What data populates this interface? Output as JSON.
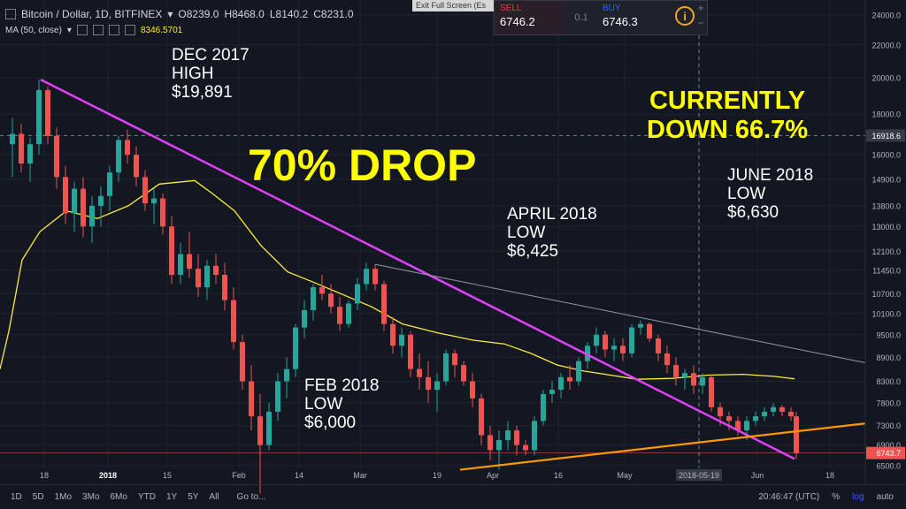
{
  "header": {
    "symbol": "Bitcoin / Dollar, 1D, BITFINEX",
    "open": "O8239.0",
    "high": "H8468.0",
    "low": "L8140.2",
    "close": "C8231.0",
    "ma_label": "MA (50, close)",
    "ma_value": "8346.5701"
  },
  "exit_fullscreen": "Exit Full Screen (Es",
  "trade": {
    "sell_label": "SELL",
    "sell_value": "6746.2",
    "spread": "0.1",
    "buy_label": "BUY",
    "buy_value": "6746.3",
    "zoom_in": "+",
    "zoom_out": "−"
  },
  "annotations": {
    "dec_high": "DEC 2017\nHIGH\n$19,891",
    "drop": "70% DROP",
    "currently": "CURRENTLY\nDOWN 66.7%",
    "june_low": "JUNE 2018\nLOW\n$6,630",
    "april_low": "APRIL 2018\nLOW\n$6,425",
    "feb_low": "FEB 2018\nLOW\n$6,000"
  },
  "bottom_bar": {
    "timeframes": [
      "1D",
      "5D",
      "1Mo",
      "3Mo",
      "6Mo",
      "YTD",
      "1Y",
      "5Y",
      "All"
    ],
    "goto": "Go to...",
    "clock": "20:46:47 (UTC)",
    "pct": "%",
    "log": "log",
    "auto": "auto"
  },
  "colors": {
    "bg": "#131722",
    "up": "#26a69a",
    "down": "#ef5350",
    "ma": "#ffeb3b",
    "downtrend": "#e040fb",
    "support": "#ff9800",
    "resistance": "#9598a1",
    "annotation_yellow": "#ffff00"
  },
  "chart_data": {
    "type": "candlestick",
    "x_axis": {
      "ticks": [
        "18",
        "2018",
        "15",
        "Feb",
        "14",
        "Mar",
        "19",
        "Apr",
        "16",
        "May",
        "2018-05-19",
        "Jun",
        "18"
      ]
    },
    "y_axis": {
      "ticks": [
        6500,
        6900,
        7300,
        7800,
        8300,
        8900,
        9500,
        10100,
        10700,
        11450,
        12100,
        13000,
        13800,
        14900,
        16000,
        18000,
        20000,
        22000,
        24000
      ],
      "scale": "log",
      "ylim": [
        6350,
        24500
      ],
      "labels": [
        "6500.0",
        "6900.0",
        "7300.0",
        "7800.0",
        "8300.0",
        "8900.0",
        "9500.0",
        "10100.0",
        "10700.0",
        "11450.0",
        "12100.0",
        "13000.0",
        "13800.0",
        "14900.0",
        "16000.0",
        "18000.0",
        "20000.0",
        "22000.0",
        "24000.0"
      ],
      "crosshair_label": "16918.6",
      "last_price_label": "6743.7"
    },
    "series": [
      {
        "name": "MA (50, close)",
        "type": "line",
        "points": [
          [
            0,
            8600
          ],
          [
            10,
            9600
          ],
          [
            25,
            11800
          ],
          [
            45,
            12800
          ],
          [
            75,
            13600
          ],
          [
            110,
            13300
          ],
          [
            145,
            13800
          ],
          [
            180,
            14700
          ],
          [
            220,
            14850
          ],
          [
            240,
            14300
          ],
          [
            265,
            13600
          ],
          [
            295,
            12300
          ],
          [
            325,
            11400
          ],
          [
            355,
            11050
          ],
          [
            385,
            10700
          ],
          [
            420,
            10300
          ],
          [
            455,
            9800
          ],
          [
            495,
            9550
          ],
          [
            535,
            9350
          ],
          [
            570,
            9250
          ],
          [
            600,
            9000
          ],
          [
            630,
            8700
          ],
          [
            660,
            8550
          ],
          [
            690,
            8450
          ],
          [
            720,
            8350
          ],
          [
            760,
            8370
          ],
          [
            800,
            8450
          ],
          [
            840,
            8470
          ],
          [
            875,
            8420
          ],
          [
            898,
            8360
          ]
        ]
      }
    ],
    "candles": [
      [
        14,
        16500,
        17800,
        15000,
        17000
      ],
      [
        24,
        17000,
        17500,
        15200,
        15600
      ],
      [
        34,
        15600,
        16800,
        14800,
        16500
      ],
      [
        44,
        16500,
        19891,
        16000,
        19300
      ],
      [
        54,
        19300,
        19500,
        16500,
        16900
      ],
      [
        64,
        16900,
        17300,
        14500,
        15000
      ],
      [
        74,
        15000,
        15500,
        13100,
        13500
      ],
      [
        84,
        13500,
        14800,
        12800,
        14500
      ],
      [
        94,
        14500,
        15000,
        12600,
        13000
      ],
      [
        104,
        13000,
        14200,
        12400,
        13800
      ],
      [
        114,
        13800,
        14600,
        13000,
        14200
      ],
      [
        124,
        14200,
        15500,
        13600,
        15200
      ],
      [
        134,
        15200,
        16900,
        14800,
        16700
      ],
      [
        144,
        16700,
        17200,
        15600,
        16000
      ],
      [
        154,
        16000,
        16400,
        14600,
        15000
      ],
      [
        164,
        15000,
        15300,
        13600,
        13900
      ],
      [
        174,
        13900,
        14500,
        13100,
        14100
      ],
      [
        184,
        14100,
        14300,
        12700,
        13000
      ],
      [
        194,
        13000,
        13400,
        11000,
        11300
      ],
      [
        204,
        11300,
        12400,
        11000,
        12000
      ],
      [
        214,
        12000,
        12800,
        11200,
        11500
      ],
      [
        224,
        11500,
        12000,
        10600,
        10900
      ],
      [
        234,
        10900,
        11800,
        10500,
        11600
      ],
      [
        244,
        11600,
        12000,
        11000,
        11300
      ],
      [
        254,
        11300,
        11700,
        10200,
        10500
      ],
      [
        264,
        10500,
        10900,
        9100,
        9300
      ],
      [
        274,
        9300,
        9500,
        8100,
        8300
      ],
      [
        284,
        8300,
        8700,
        7200,
        7500
      ],
      [
        294,
        7500,
        8000,
        6000,
        6900
      ],
      [
        304,
        6900,
        7800,
        6800,
        7600
      ],
      [
        314,
        7600,
        8500,
        7400,
        8300
      ],
      [
        324,
        8300,
        8900,
        7900,
        8600
      ],
      [
        334,
        8600,
        9800,
        8400,
        9700
      ],
      [
        344,
        9700,
        10500,
        9400,
        10200
      ],
      [
        354,
        10200,
        11000,
        9900,
        10900
      ],
      [
        364,
        10900,
        11300,
        10500,
        10700
      ],
      [
        374,
        10700,
        11000,
        10100,
        10300
      ],
      [
        384,
        10300,
        10600,
        9600,
        9800
      ],
      [
        394,
        9800,
        10500,
        9700,
        10400
      ],
      [
        404,
        10400,
        11200,
        10200,
        11000
      ],
      [
        414,
        11000,
        11700,
        10800,
        11500
      ],
      [
        424,
        11500,
        11650,
        10800,
        11000
      ],
      [
        434,
        11000,
        11100,
        9600,
        9800
      ],
      [
        444,
        9800,
        10000,
        9000,
        9200
      ],
      [
        454,
        9200,
        9700,
        8900,
        9500
      ],
      [
        464,
        9500,
        9600,
        8400,
        8600
      ],
      [
        474,
        8600,
        9000,
        8100,
        8400
      ],
      [
        484,
        8400,
        8800,
        7800,
        8100
      ],
      [
        494,
        8100,
        8500,
        7600,
        8300
      ],
      [
        504,
        8300,
        9100,
        8200,
        9000
      ],
      [
        514,
        9000,
        9100,
        8400,
        8700
      ],
      [
        524,
        8700,
        8800,
        8200,
        8300
      ],
      [
        534,
        8300,
        8500,
        7700,
        7900
      ],
      [
        544,
        7900,
        8000,
        6900,
        7100
      ],
      [
        554,
        7100,
        7300,
        6600,
        6800
      ],
      [
        564,
        6800,
        7200,
        6425,
        7000
      ],
      [
        574,
        7000,
        7400,
        6800,
        7200
      ],
      [
        584,
        7200,
        7300,
        6700,
        6900
      ],
      [
        594,
        6900,
        7000,
        6700,
        6800
      ],
      [
        604,
        6800,
        7500,
        6700,
        7400
      ],
      [
        614,
        7400,
        8100,
        7300,
        8000
      ],
      [
        624,
        8000,
        8300,
        7800,
        8100
      ],
      [
        634,
        8100,
        8500,
        7900,
        8400
      ],
      [
        644,
        8400,
        8700,
        8100,
        8300
      ],
      [
        654,
        8300,
        8900,
        8200,
        8800
      ],
      [
        664,
        8800,
        9300,
        8600,
        9200
      ],
      [
        674,
        9200,
        9700,
        9000,
        9500
      ],
      [
        684,
        9500,
        9600,
        8900,
        9100
      ],
      [
        694,
        9100,
        9400,
        8800,
        9200
      ],
      [
        704,
        9200,
        9400,
        8800,
        9000
      ],
      [
        714,
        9000,
        9800,
        8900,
        9700
      ],
      [
        724,
        9700,
        9900,
        9500,
        9800
      ],
      [
        734,
        9800,
        9850,
        9300,
        9400
      ],
      [
        744,
        9400,
        9500,
        8800,
        9000
      ],
      [
        754,
        9000,
        9200,
        8500,
        8700
      ],
      [
        764,
        8700,
        8900,
        8200,
        8400
      ],
      [
        774,
        8400,
        8600,
        8100,
        8500
      ],
      [
        784,
        8500,
        8700,
        8000,
        8200
      ],
      [
        794,
        8200,
        8500,
        8000,
        8400
      ],
      [
        804,
        8400,
        8450,
        7600,
        7700
      ],
      [
        814,
        7700,
        7800,
        7300,
        7500
      ],
      [
        824,
        7500,
        7600,
        7200,
        7400
      ],
      [
        834,
        7400,
        7500,
        7100,
        7200
      ],
      [
        844,
        7200,
        7500,
        7000,
        7400
      ],
      [
        854,
        7400,
        7600,
        7300,
        7500
      ],
      [
        864,
        7500,
        7700,
        7400,
        7600
      ],
      [
        874,
        7600,
        7800,
        7500,
        7700
      ],
      [
        884,
        7700,
        7750,
        7500,
        7600
      ],
      [
        894,
        7600,
        7700,
        7400,
        7500
      ],
      [
        900,
        7500,
        7600,
        6630,
        6743
      ]
    ],
    "trendlines": [
      {
        "name": "downtrend",
        "x1": 46,
        "y1": 19891,
        "x2": 898,
        "y2": 6630
      },
      {
        "name": "resistance",
        "x1": 424,
        "y1": 11650,
        "x2": 980,
        "y2": 8750
      },
      {
        "name": "support",
        "x1": 520,
        "y1": 6425,
        "x2": 980,
        "y2": 7350
      }
    ]
  }
}
